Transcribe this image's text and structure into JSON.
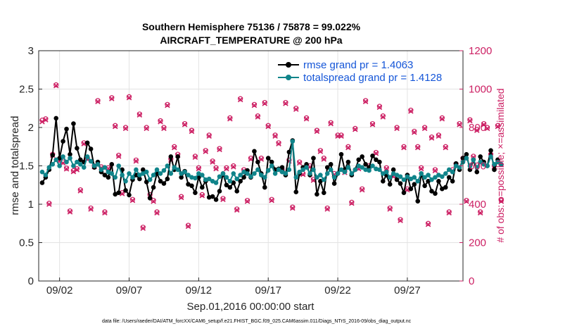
{
  "chart_data": {
    "type": "line",
    "title_line1": "Southern Hemisphere 75136 / 75878 = 99.022%",
    "title_line2": "AIRCRAFT_TEMPERATURE @ 200 hPa",
    "xlabel": "Sep.01,2016 00:00:00 start",
    "ylabel_left": "rmse and totalspread",
    "ylabel_right": "# of obs: o=possible; ×=assimilated",
    "xlim": [
      0.5,
      31.0
    ],
    "ylim_left": [
      0,
      3
    ],
    "ylim_right": [
      0,
      1200
    ],
    "x_ticks": [
      {
        "value": 2,
        "label": "09/02"
      },
      {
        "value": 7,
        "label": "09/07"
      },
      {
        "value": 12,
        "label": "09/12"
      },
      {
        "value": 17,
        "label": "09/17"
      },
      {
        "value": 22,
        "label": "09/22"
      },
      {
        "value": 27,
        "label": "09/27"
      }
    ],
    "y_ticks_left": [
      {
        "value": 0,
        "label": "0"
      },
      {
        "value": 0.5,
        "label": "0.5"
      },
      {
        "value": 1,
        "label": "1"
      },
      {
        "value": 1.5,
        "label": "1.5"
      },
      {
        "value": 2,
        "label": "2"
      },
      {
        "value": 2.5,
        "label": "2.5"
      },
      {
        "value": 3,
        "label": "3"
      }
    ],
    "y_ticks_right": [
      {
        "value": 0,
        "label": "0"
      },
      {
        "value": 200,
        "label": "200"
      },
      {
        "value": 400,
        "label": "400"
      },
      {
        "value": 600,
        "label": "600"
      },
      {
        "value": 800,
        "label": "800"
      },
      {
        "value": 1000,
        "label": "1000"
      },
      {
        "value": 1200,
        "label": "1200"
      }
    ],
    "grid": true,
    "legend_position": "top-right",
    "series": [
      {
        "name": "rmse grand pr = 1.4063",
        "axis": "left",
        "color": "#000000",
        "x_start": 0.75,
        "x_step": 0.25,
        "values": [
          1.28,
          1.35,
          1.45,
          1.64,
          2.12,
          1.6,
          1.82,
          1.98,
          1.65,
          2.05,
          1.73,
          1.58,
          1.55,
          1.8,
          1.72,
          1.48,
          1.55,
          1.42,
          1.38,
          1.35,
          1.52,
          1.13,
          1.15,
          1.45,
          1.18,
          1.12,
          1.32,
          1.38,
          1.33,
          1.45,
          1.29,
          1.08,
          1.22,
          1.4,
          1.3,
          1.27,
          1.33,
          1.62,
          1.45,
          1.62,
          1.35,
          1.43,
          1.26,
          1.24,
          1.15,
          1.35,
          1.22,
          1.3,
          1.09,
          1.1,
          1.06,
          1.17,
          1.4,
          1.25,
          1.22,
          1.28,
          1.17,
          1.3,
          1.35,
          1.44,
          1.35,
          1.69,
          1.55,
          1.4,
          1.22,
          1.6,
          1.55,
          1.45,
          1.46,
          1.48,
          1.38,
          1.68,
          1.83,
          1.16,
          1.4,
          1.48,
          1.52,
          1.38,
          1.6,
          1.13,
          1.3,
          1.15,
          1.48,
          1.52,
          1.27,
          1.4,
          1.65,
          1.45,
          1.55,
          1.38,
          1.45,
          1.58,
          1.62,
          1.52,
          1.48,
          1.63,
          1.58,
          1.55,
          1.3,
          1.38,
          1.26,
          1.45,
          1.32,
          1.27,
          1.15,
          1.38,
          1.2,
          1.26,
          1.04,
          1.4,
          1.24,
          1.3,
          1.17,
          1.14,
          1.3,
          1.2,
          1.22,
          1.35,
          1.3,
          1.53,
          1.45,
          1.6,
          1.65,
          1.45,
          1.58,
          1.42,
          1.62,
          1.55,
          1.5,
          1.7,
          1.45,
          1.58,
          1.52
        ]
      },
      {
        "name": "totalspread grand pr = 1.4128",
        "axis": "left",
        "color": "#10848a",
        "x_start": 0.75,
        "x_step": 0.25,
        "values": [
          1.42,
          1.38,
          1.48,
          1.52,
          1.58,
          1.5,
          1.62,
          1.55,
          1.6,
          1.5,
          1.55,
          1.52,
          1.48,
          1.62,
          1.56,
          1.5,
          1.52,
          1.45,
          1.48,
          1.42,
          1.4,
          1.35,
          1.5,
          1.38,
          1.3,
          1.4,
          1.35,
          1.45,
          1.38,
          1.4,
          1.42,
          1.32,
          1.38,
          1.45,
          1.4,
          1.44,
          1.5,
          1.4,
          1.48,
          1.45,
          1.4,
          1.42,
          1.38,
          1.35,
          1.34,
          1.4,
          1.38,
          1.32,
          1.33,
          1.3,
          1.28,
          1.36,
          1.4,
          1.35,
          1.3,
          1.4,
          1.33,
          1.38,
          1.42,
          1.4,
          1.36,
          1.4,
          1.45,
          1.38,
          1.35,
          1.44,
          1.5,
          1.4,
          1.45,
          1.42,
          1.4,
          1.45,
          1.82,
          1.35,
          1.42,
          1.45,
          1.48,
          1.4,
          1.45,
          1.35,
          1.38,
          1.32,
          1.4,
          1.45,
          1.35,
          1.4,
          1.45,
          1.42,
          1.48,
          1.4,
          1.45,
          1.5,
          1.48,
          1.45,
          1.44,
          1.5,
          1.46,
          1.45,
          1.4,
          1.42,
          1.35,
          1.4,
          1.38,
          1.36,
          1.32,
          1.36,
          1.33,
          1.35,
          1.3,
          1.4,
          1.35,
          1.38,
          1.32,
          1.35,
          1.38,
          1.36,
          1.4,
          1.45,
          1.42,
          1.5,
          1.48,
          1.55,
          1.6,
          1.5,
          1.58,
          1.48,
          1.55,
          1.52,
          1.5,
          1.62,
          1.52,
          1.55,
          1.52
        ]
      }
    ],
    "obs_count_series": {
      "axis": "right",
      "color": "#cc1f63",
      "possible_marker": "o",
      "assimilated_marker": "x",
      "x_start": 0.75,
      "x_step": 0.25,
      "possible": [
        838,
        845,
        405,
        660,
        1022,
        630,
        620,
        588,
        365,
        575,
        585,
        475,
        720,
        640,
        380,
        600,
        940,
        595,
        360,
        590,
        955,
        810,
        655,
        460,
        800,
        960,
        425,
        630,
        870,
        280,
        800,
        450,
        420,
        360,
        835,
        800,
        920,
        635,
        700,
        660,
        440,
        820,
        290,
        785,
        650,
        590,
        450,
        680,
        760,
        625,
        590,
        690,
        430,
        590,
        850,
        600,
        375,
        950,
        580,
        420,
        640,
        920,
        860,
        640,
        930,
        810,
        425,
        760,
        720,
        580,
        930,
        630,
        385,
        900,
        620,
        560,
        850,
        600,
        530,
        785,
        680,
        640,
        380,
        825,
        560,
        760,
        760,
        570,
        700,
        410,
        795,
        590,
        480,
        940,
        600,
        820,
        670,
        910,
        860,
        590,
        380,
        550,
        800,
        320,
        700,
        480,
        890,
        780,
        700,
        590,
        800,
        300,
        750,
        580,
        760,
        850,
        700,
        360,
        580,
        610,
        820,
        640,
        420,
        840,
        650,
        790,
        360,
        820,
        800,
        660,
        600,
        810,
        420
      ],
      "assimilated": [
        830,
        840,
        400,
        655,
        1018,
        625,
        615,
        584,
        360,
        570,
        580,
        470,
        715,
        635,
        375,
        596,
        935,
        590,
        355,
        586,
        950,
        805,
        650,
        455,
        795,
        955,
        420,
        625,
        865,
        275,
        795,
        445,
        415,
        355,
        830,
        795,
        915,
        630,
        695,
        655,
        435,
        815,
        285,
        780,
        645,
        585,
        445,
        675,
        755,
        620,
        585,
        685,
        425,
        585,
        845,
        595,
        370,
        945,
        575,
        415,
        635,
        915,
        855,
        635,
        925,
        805,
        420,
        755,
        715,
        575,
        925,
        625,
        380,
        895,
        615,
        555,
        845,
        595,
        525,
        780,
        675,
        635,
        375,
        820,
        555,
        755,
        755,
        565,
        695,
        405,
        790,
        585,
        475,
        935,
        595,
        815,
        665,
        905,
        855,
        585,
        375,
        545,
        795,
        315,
        695,
        475,
        885,
        775,
        695,
        585,
        795,
        295,
        745,
        575,
        755,
        845,
        695,
        355,
        575,
        605,
        815,
        635,
        415,
        835,
        645,
        785,
        355,
        815,
        795,
        655,
        595,
        805,
        415
      ]
    },
    "footer": "data file: /Users/raeder/DAI/ATM_forcXX/CAM6_setup/f.e21.FHIST_BGC.f09_025.CAM6assim.011/Diags_NTrS_2016-09/obs_diag_output.nc"
  }
}
